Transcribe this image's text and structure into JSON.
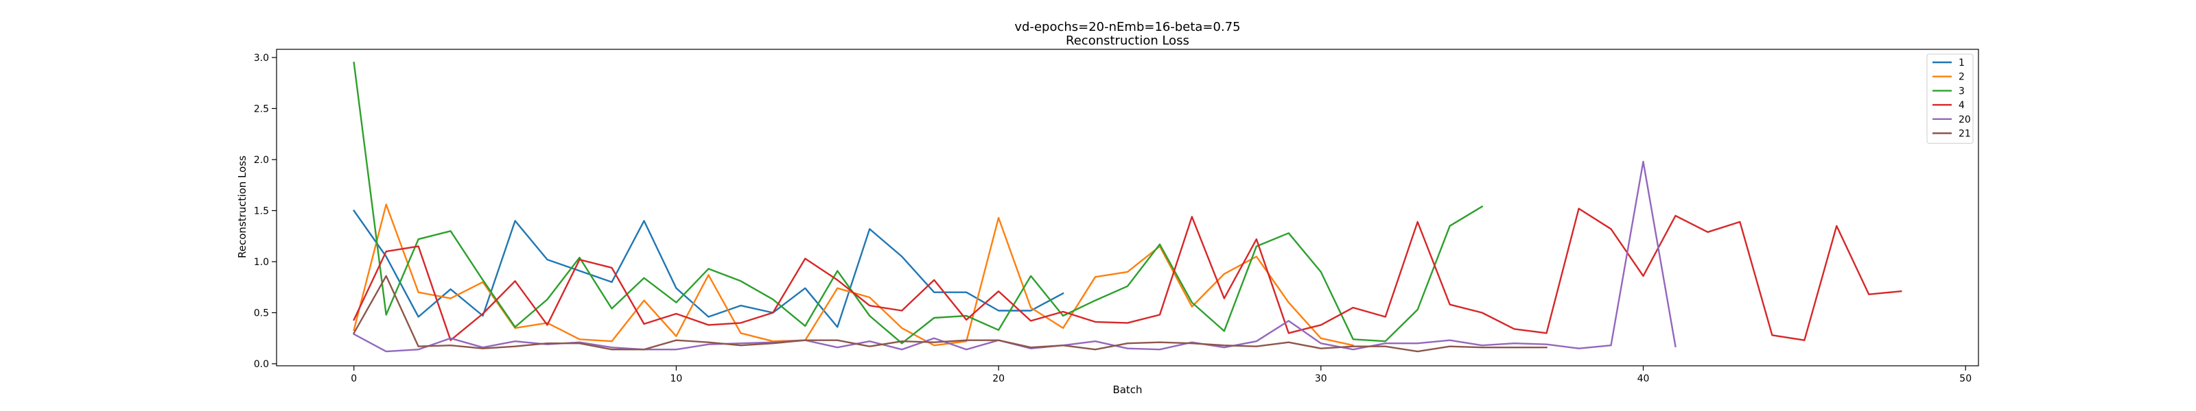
{
  "chart_data": {
    "type": "line",
    "title": "vd-epochs=20-nEmb=16-beta=0.75",
    "subtitle": "Reconstruction Loss",
    "xlabel": "Batch",
    "ylabel": "Reconstruction Loss",
    "xlim": [
      -2.4,
      50.4
    ],
    "ylim": [
      -0.02,
      3.08
    ],
    "xticks": [
      0,
      10,
      20,
      30,
      40,
      50
    ],
    "yticks": [
      0.0,
      0.5,
      1.0,
      1.5,
      2.0,
      2.5,
      3.0
    ],
    "grid": false,
    "legend_position": "top-right",
    "series": [
      {
        "name": "1",
        "color": "#1f77b4",
        "values": [
          1.5,
          1.05,
          0.46,
          0.73,
          0.47,
          1.4,
          1.02,
          0.91,
          0.8,
          1.4,
          0.74,
          0.46,
          0.57,
          0.5,
          0.74,
          0.36,
          1.32,
          1.05,
          0.7,
          0.7,
          0.52,
          0.52,
          0.69
        ]
      },
      {
        "name": "2",
        "color": "#ff7f0e",
        "values": [
          0.33,
          1.56,
          0.7,
          0.64,
          0.8,
          0.35,
          0.4,
          0.24,
          0.22,
          0.62,
          0.27,
          0.87,
          0.3,
          0.22,
          0.23,
          0.74,
          0.65,
          0.35,
          0.18,
          0.22,
          1.43,
          0.55,
          0.35,
          0.85,
          0.9,
          1.15,
          0.56,
          0.88,
          1.05,
          0.6,
          0.25,
          0.18
        ]
      },
      {
        "name": "3",
        "color": "#2ca02c",
        "values": [
          2.95,
          0.48,
          1.22,
          1.3,
          0.82,
          0.36,
          0.63,
          1.04,
          0.54,
          0.84,
          0.6,
          0.93,
          0.81,
          0.63,
          0.37,
          0.91,
          0.47,
          0.2,
          0.45,
          0.47,
          0.33,
          0.86,
          0.47,
          0.62,
          0.76,
          1.17,
          0.6,
          0.32,
          1.15,
          1.28,
          0.9,
          0.24,
          0.22,
          0.53,
          1.35,
          1.54
        ]
      },
      {
        "name": "4",
        "color": "#d62728",
        "values": [
          0.43,
          1.1,
          1.15,
          0.23,
          0.49,
          0.81,
          0.38,
          1.02,
          0.94,
          0.39,
          0.49,
          0.38,
          0.4,
          0.5,
          1.03,
          0.82,
          0.57,
          0.52,
          0.82,
          0.43,
          0.71,
          0.42,
          0.51,
          0.41,
          0.4,
          0.48,
          1.44,
          0.64,
          1.22,
          0.3,
          0.38,
          0.55,
          0.46,
          1.39,
          0.58,
          0.5,
          0.34,
          0.3,
          1.52,
          1.32,
          0.86,
          1.45,
          1.29,
          1.39,
          0.28,
          0.23,
          1.35,
          0.68,
          0.71
        ]
      },
      {
        "name": "20",
        "color": "#9467bd",
        "values": [
          0.29,
          0.12,
          0.14,
          0.25,
          0.16,
          0.22,
          0.19,
          0.21,
          0.16,
          0.14,
          0.14,
          0.19,
          0.2,
          0.21,
          0.23,
          0.16,
          0.22,
          0.14,
          0.25,
          0.14,
          0.23,
          0.15,
          0.18,
          0.22,
          0.15,
          0.14,
          0.21,
          0.16,
          0.22,
          0.42,
          0.2,
          0.14,
          0.2,
          0.2,
          0.23,
          0.18,
          0.2,
          0.19,
          0.15,
          0.18,
          1.98,
          0.17
        ]
      },
      {
        "name": "21",
        "color": "#8c564b",
        "values": [
          0.3,
          0.86,
          0.17,
          0.18,
          0.15,
          0.17,
          0.2,
          0.2,
          0.14,
          0.14,
          0.23,
          0.21,
          0.18,
          0.2,
          0.23,
          0.23,
          0.17,
          0.22,
          0.21,
          0.23,
          0.23,
          0.16,
          0.18,
          0.14,
          0.2,
          0.21,
          0.2,
          0.18,
          0.17,
          0.21,
          0.15,
          0.17,
          0.17,
          0.12,
          0.17,
          0.16,
          0.16,
          0.16
        ]
      }
    ]
  }
}
